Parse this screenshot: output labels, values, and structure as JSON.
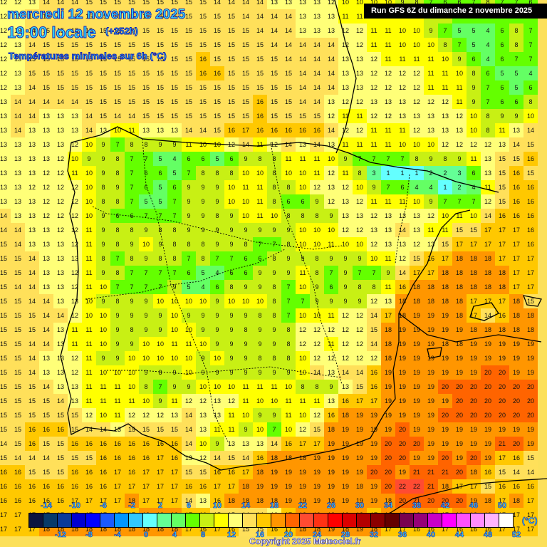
{
  "header": {
    "date": "mercredi 12 novembre 2025",
    "time": "19:00 locale",
    "lead": "(+252h)",
    "parameter": "Températures minimales sur 6h (°C)",
    "run": "Run GFS 6Z du dimanche 2 novembre 2025"
  },
  "footer": {
    "copyright": "Copyright 2025 Meteociel.fr",
    "unit": "(°C)"
  },
  "colorbar": {
    "top_labels": [
      "-14",
      "-10",
      "-6",
      "-2",
      "2",
      "6",
      "10",
      "14",
      "18",
      "22",
      "26",
      "30",
      "34",
      "38",
      "42",
      "46",
      "50"
    ],
    "bottom_labels": [
      "-12",
      "-8",
      "-4",
      "0",
      "4",
      "8",
      "12",
      "16",
      "20",
      "24",
      "28",
      "32",
      "36",
      "40",
      "44",
      "48",
      "52"
    ],
    "colors": [
      "#0a1440",
      "#063a6a",
      "#0a3a9a",
      "#0000d0",
      "#0000ff",
      "#1a5aff",
      "#0096ff",
      "#32c8ff",
      "#64ffff",
      "#64ff96",
      "#64ff64",
      "#64ff00",
      "#c8f014",
      "#ffff00",
      "#ffff78",
      "#ffe05a",
      "#ffc800",
      "#ff9600",
      "#ff6400",
      "#ff4b32",
      "#ff3214",
      "#ff0000",
      "#dc0000",
      "#b40000",
      "#8c0000",
      "#640000",
      "#780050",
      "#960078",
      "#c800c8",
      "#ff00ff",
      "#ff50ff",
      "#ff8cff",
      "#ffb4ff",
      "#ffffff"
    ]
  },
  "map": {
    "cols": 38,
    "rows": 38,
    "spacing": 20,
    "grid": [
      [
        12,
        12,
        13,
        14,
        14,
        14,
        15,
        15,
        15,
        15,
        15,
        15,
        15,
        15,
        15,
        14,
        14,
        14,
        14,
        13,
        13,
        13,
        13,
        12,
        10,
        10,
        10,
        10,
        9,
        8,
        7,
        6,
        6,
        7,
        8,
        7,
        7,
        6
      ],
      [
        12,
        13,
        14,
        15,
        15,
        15,
        15,
        15,
        15,
        15,
        15,
        15,
        15,
        15,
        15,
        15,
        15,
        14,
        14,
        14,
        14,
        13,
        13,
        13,
        11,
        11,
        11,
        11,
        11,
        10,
        9,
        8,
        7,
        7,
        7,
        7,
        7,
        7
      ],
      [
        12,
        13,
        14,
        15,
        15,
        15,
        15,
        15,
        15,
        15,
        15,
        15,
        15,
        15,
        15,
        15,
        15,
        15,
        14,
        14,
        14,
        13,
        13,
        13,
        12,
        12,
        11,
        11,
        10,
        10,
        9,
        7,
        5,
        5,
        4,
        6,
        8,
        7
      ],
      [
        12,
        13,
        14,
        15,
        15,
        15,
        15,
        15,
        15,
        15,
        15,
        15,
        15,
        15,
        15,
        15,
        15,
        15,
        15,
        14,
        14,
        14,
        14,
        14,
        12,
        12,
        11,
        11,
        10,
        10,
        10,
        8,
        7,
        5,
        4,
        6,
        8,
        7
      ],
      [
        12,
        13,
        15,
        15,
        15,
        15,
        15,
        15,
        15,
        15,
        15,
        15,
        15,
        15,
        16,
        15,
        15,
        15,
        15,
        15,
        14,
        14,
        14,
        14,
        13,
        13,
        12,
        11,
        11,
        11,
        11,
        10,
        9,
        6,
        4,
        6,
        7,
        7
      ],
      [
        12,
        13,
        15,
        15,
        15,
        15,
        15,
        15,
        15,
        15,
        15,
        15,
        15,
        15,
        16,
        16,
        15,
        15,
        15,
        15,
        15,
        14,
        14,
        14,
        13,
        13,
        12,
        12,
        12,
        12,
        11,
        11,
        10,
        8,
        6,
        5,
        5,
        4
      ],
      [
        12,
        13,
        14,
        15,
        15,
        15,
        15,
        15,
        15,
        15,
        15,
        15,
        15,
        15,
        15,
        15,
        15,
        15,
        15,
        15,
        15,
        14,
        14,
        14,
        13,
        13,
        12,
        12,
        12,
        12,
        11,
        11,
        11,
        9,
        7,
        6,
        5,
        6
      ],
      [
        13,
        14,
        14,
        14,
        14,
        14,
        15,
        15,
        15,
        15,
        15,
        15,
        15,
        15,
        15,
        15,
        15,
        15,
        16,
        15,
        15,
        14,
        14,
        13,
        12,
        12,
        13,
        13,
        13,
        12,
        12,
        12,
        11,
        9,
        7,
        6,
        6,
        8
      ],
      [
        13,
        14,
        14,
        13,
        13,
        13,
        14,
        15,
        14,
        14,
        15,
        15,
        15,
        15,
        15,
        15,
        15,
        15,
        16,
        15,
        15,
        15,
        15,
        12,
        11,
        11,
        12,
        12,
        13,
        13,
        13,
        13,
        12,
        10,
        8,
        9,
        9,
        10
      ],
      [
        13,
        14,
        13,
        13,
        13,
        13,
        14,
        13,
        10,
        11,
        13,
        13,
        13,
        14,
        14,
        15,
        16,
        17,
        16,
        16,
        16,
        16,
        16,
        14,
        12,
        12,
        11,
        11,
        11,
        12,
        13,
        13,
        13,
        10,
        8,
        11,
        13,
        14
      ],
      [
        13,
        13,
        13,
        13,
        13,
        12,
        10,
        9,
        7,
        8,
        8,
        9,
        9,
        11,
        10,
        10,
        12,
        14,
        11,
        12,
        14,
        13,
        14,
        13,
        11,
        11,
        11,
        11,
        10,
        10,
        10,
        12,
        12,
        12,
        12,
        13,
        14,
        15
      ],
      [
        13,
        13,
        13,
        13,
        12,
        10,
        9,
        9,
        8,
        7,
        7,
        5,
        4,
        6,
        6,
        5,
        6,
        9,
        8,
        8,
        11,
        11,
        11,
        10,
        9,
        7,
        7,
        7,
        7,
        8,
        9,
        8,
        9,
        11,
        13,
        15,
        15,
        16
      ],
      [
        13,
        13,
        13,
        12,
        12,
        11,
        10,
        9,
        8,
        7,
        6,
        6,
        5,
        7,
        8,
        8,
        8,
        10,
        10,
        8,
        10,
        10,
        11,
        12,
        11,
        8,
        3,
        1,
        1,
        1,
        2,
        2,
        3,
        6,
        13,
        15,
        16,
        15
      ],
      [
        13,
        13,
        12,
        12,
        12,
        12,
        10,
        8,
        9,
        7,
        6,
        5,
        6,
        9,
        9,
        9,
        10,
        11,
        11,
        8,
        8,
        10,
        12,
        13,
        12,
        10,
        9,
        7,
        6,
        4,
        4,
        1,
        2,
        4,
        11,
        15,
        16,
        16
      ],
      [
        13,
        13,
        13,
        12,
        12,
        12,
        10,
        8,
        8,
        7,
        5,
        5,
        7,
        9,
        9,
        9,
        10,
        10,
        11,
        8,
        6,
        6,
        9,
        12,
        13,
        12,
        11,
        11,
        11,
        10,
        9,
        7,
        7,
        7,
        12,
        15,
        16,
        16
      ],
      [
        14,
        13,
        13,
        12,
        12,
        12,
        10,
        9,
        6,
        6,
        7,
        7,
        7,
        9,
        9,
        8,
        9,
        10,
        11,
        10,
        8,
        8,
        8,
        9,
        13,
        13,
        12,
        13,
        13,
        13,
        12,
        10,
        11,
        10,
        14,
        16,
        16,
        16
      ],
      [
        14,
        14,
        13,
        13,
        12,
        12,
        11,
        9,
        8,
        8,
        9,
        8,
        8,
        9,
        9,
        9,
        9,
        9,
        9,
        9,
        9,
        10,
        10,
        10,
        12,
        12,
        13,
        13,
        14,
        13,
        11,
        11,
        15,
        15,
        17,
        17,
        17,
        16
      ],
      [
        15,
        14,
        13,
        13,
        13,
        12,
        11,
        9,
        8,
        9,
        10,
        9,
        8,
        8,
        8,
        9,
        9,
        8,
        7,
        7,
        8,
        10,
        10,
        11,
        10,
        10,
        12,
        13,
        13,
        12,
        13,
        15,
        17,
        17,
        17,
        17,
        17,
        16
      ],
      [
        15,
        15,
        14,
        13,
        13,
        13,
        11,
        8,
        7,
        8,
        9,
        8,
        8,
        7,
        8,
        7,
        7,
        6,
        6,
        8,
        9,
        9,
        8,
        9,
        9,
        9,
        10,
        11,
        12,
        15,
        16,
        17,
        18,
        18,
        18,
        17,
        17,
        17
      ],
      [
        15,
        15,
        14,
        13,
        13,
        12,
        11,
        9,
        8,
        7,
        7,
        7,
        7,
        6,
        5,
        4,
        6,
        6,
        9,
        9,
        9,
        11,
        8,
        7,
        9,
        7,
        7,
        9,
        14,
        17,
        17,
        18,
        18,
        18,
        18,
        18,
        17,
        17
      ],
      [
        15,
        14,
        14,
        13,
        13,
        12,
        11,
        10,
        7,
        7,
        7,
        7,
        9,
        5,
        4,
        6,
        8,
        9,
        9,
        8,
        7,
        10,
        9,
        6,
        9,
        8,
        8,
        11,
        16,
        18,
        18,
        18,
        18,
        18,
        18,
        18,
        17,
        17
      ],
      [
        15,
        15,
        14,
        14,
        13,
        13,
        10,
        9,
        8,
        9,
        9,
        10,
        10,
        10,
        10,
        9,
        10,
        10,
        10,
        8,
        7,
        7,
        9,
        9,
        9,
        9,
        12,
        13,
        18,
        18,
        18,
        18,
        18,
        17,
        17,
        17,
        18,
        15
      ],
      [
        15,
        15,
        15,
        14,
        14,
        12,
        10,
        10,
        9,
        9,
        9,
        9,
        10,
        9,
        9,
        9,
        9,
        9,
        8,
        8,
        7,
        10,
        10,
        11,
        12,
        12,
        14,
        17,
        18,
        19,
        19,
        19,
        18,
        17,
        14,
        16,
        18,
        18
      ],
      [
        15,
        15,
        15,
        14,
        13,
        11,
        11,
        10,
        9,
        8,
        9,
        9,
        10,
        10,
        9,
        9,
        9,
        8,
        9,
        9,
        8,
        12,
        12,
        12,
        12,
        12,
        15,
        18,
        19,
        19,
        19,
        19,
        19,
        18,
        18,
        18,
        18,
        18
      ],
      [
        15,
        15,
        14,
        14,
        13,
        11,
        11,
        10,
        9,
        9,
        10,
        10,
        11,
        11,
        10,
        9,
        9,
        9,
        9,
        9,
        8,
        12,
        12,
        11,
        12,
        12,
        14,
        18,
        19,
        19,
        19,
        18,
        18,
        19,
        19,
        19,
        19,
        19
      ],
      [
        15,
        15,
        14,
        13,
        13,
        12,
        11,
        9,
        9,
        10,
        10,
        10,
        10,
        10,
        9,
        10,
        9,
        9,
        8,
        8,
        8,
        10,
        12,
        12,
        12,
        12,
        12,
        18,
        19,
        19,
        19,
        19,
        19,
        19,
        19,
        19,
        19,
        19
      ],
      [
        15,
        15,
        14,
        13,
        13,
        12,
        11,
        10,
        10,
        10,
        9,
        8,
        9,
        10,
        9,
        9,
        9,
        9,
        9,
        9,
        9,
        10,
        14,
        13,
        14,
        14,
        16,
        19,
        19,
        19,
        19,
        19,
        19,
        19,
        20,
        20,
        19,
        19
      ],
      [
        15,
        15,
        15,
        14,
        13,
        13,
        11,
        11,
        11,
        10,
        8,
        7,
        9,
        9,
        10,
        10,
        10,
        11,
        11,
        11,
        10,
        8,
        8,
        9,
        13,
        15,
        16,
        19,
        19,
        19,
        19,
        20,
        20,
        20,
        20,
        20,
        20,
        20
      ],
      [
        15,
        15,
        15,
        15,
        14,
        13,
        11,
        11,
        11,
        11,
        10,
        9,
        11,
        12,
        12,
        13,
        12,
        11,
        10,
        10,
        11,
        11,
        11,
        13,
        16,
        17,
        17,
        19,
        19,
        19,
        19,
        19,
        20,
        20,
        20,
        20,
        20,
        20
      ],
      [
        15,
        15,
        15,
        15,
        15,
        15,
        12,
        10,
        11,
        12,
        12,
        12,
        13,
        14,
        13,
        13,
        11,
        10,
        9,
        9,
        11,
        10,
        12,
        16,
        18,
        19,
        19,
        19,
        19,
        19,
        19,
        20,
        20,
        20,
        20,
        20,
        20,
        20
      ],
      [
        15,
        15,
        16,
        16,
        16,
        15,
        14,
        14,
        13,
        15,
        15,
        15,
        15,
        14,
        13,
        11,
        11,
        9,
        10,
        7,
        10,
        12,
        15,
        18,
        19,
        19,
        19,
        19,
        20,
        19,
        19,
        19,
        19,
        19,
        19,
        19,
        19,
        19
      ],
      [
        14,
        15,
        16,
        15,
        15,
        16,
        16,
        16,
        16,
        16,
        16,
        16,
        16,
        14,
        10,
        9,
        13,
        13,
        13,
        14,
        16,
        17,
        17,
        19,
        19,
        19,
        19,
        20,
        20,
        20,
        19,
        19,
        19,
        19,
        19,
        21,
        20,
        19
      ],
      [
        15,
        14,
        14,
        14,
        15,
        15,
        15,
        16,
        16,
        16,
        16,
        17,
        16,
        13,
        12,
        14,
        15,
        14,
        16,
        18,
        18,
        18,
        19,
        19,
        19,
        19,
        19,
        20,
        20,
        19,
        19,
        20,
        19,
        20,
        19,
        17,
        16,
        15
      ],
      [
        16,
        16,
        15,
        15,
        15,
        16,
        16,
        16,
        17,
        16,
        17,
        17,
        17,
        15,
        15,
        16,
        16,
        17,
        18,
        19,
        19,
        19,
        19,
        19,
        19,
        19,
        20,
        20,
        19,
        21,
        21,
        21,
        20,
        18,
        16,
        15,
        14,
        14
      ],
      [
        16,
        16,
        16,
        16,
        16,
        16,
        16,
        16,
        17,
        17,
        17,
        17,
        17,
        16,
        16,
        17,
        17,
        18,
        19,
        19,
        19,
        19,
        19,
        19,
        19,
        18,
        19,
        20,
        22,
        22,
        21,
        18,
        17,
        17,
        15,
        16,
        16,
        16
      ],
      [
        16,
        16,
        16,
        16,
        16,
        17,
        17,
        17,
        17,
        18,
        17,
        17,
        17,
        14,
        13,
        16,
        18,
        18,
        18,
        18,
        19,
        19,
        19,
        19,
        19,
        19,
        19,
        18,
        20,
        21,
        20,
        20,
        20,
        19,
        18,
        17,
        18,
        17
      ],
      [
        17,
        17,
        17,
        17,
        17,
        17,
        17,
        17,
        17,
        17,
        18,
        18,
        18,
        17,
        16,
        15,
        15,
        14,
        14,
        13,
        17,
        18,
        19,
        18,
        19,
        18,
        17,
        18,
        18,
        18,
        18,
        17,
        18,
        18,
        18,
        17,
        17,
        17
      ],
      [
        17,
        17,
        17,
        18,
        18,
        18,
        18,
        18,
        18,
        18,
        18,
        18,
        18,
        17,
        16,
        17,
        16,
        15,
        15,
        16,
        17,
        18,
        18,
        19,
        18,
        19,
        18,
        17,
        17,
        16,
        16,
        17,
        16,
        16,
        16,
        17,
        17,
        17
      ]
    ]
  }
}
